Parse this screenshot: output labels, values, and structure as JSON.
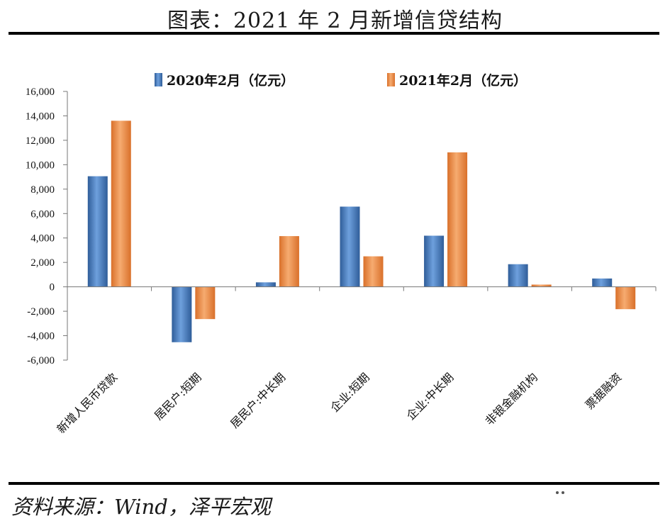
{
  "title": "图表：2021 年 2 月新增信贷结构",
  "source": "资料来源：Wind，泽平宏观",
  "watermark": "泽平宏观",
  "chart_data": {
    "type": "bar",
    "title": "图表：2021 年 2 月新增信贷结构",
    "xlabel": "",
    "ylabel": "",
    "ylim": [
      -6000,
      16000
    ],
    "yticks": [
      -6000,
      -4000,
      -2000,
      0,
      2000,
      4000,
      6000,
      8000,
      10000,
      12000,
      14000,
      16000
    ],
    "ytick_labels": [
      "-6,000",
      "-4,000",
      "-2,000",
      "0",
      "2,000",
      "4,000",
      "6,000",
      "8,000",
      "10,000",
      "12,000",
      "14,000",
      "16,000"
    ],
    "categories": [
      "新增人民币贷款",
      "居民户:短期",
      "居民户:中长期",
      "企业:短期",
      "企业:中长期",
      "非银金融机构",
      "票据融资"
    ],
    "series": [
      {
        "name": "2020年2月（亿元）",
        "color": "#4a7fc0",
        "values": [
          9057,
          -4536,
          367,
          6568,
          4187,
          1853,
          681
        ]
      },
      {
        "name": "2021年2月（亿元）",
        "color": "#e88a45",
        "values": [
          13600,
          -2642,
          4153,
          2498,
          11011,
          182,
          -1831
        ]
      }
    ],
    "legend_position": "top",
    "grid": false
  }
}
